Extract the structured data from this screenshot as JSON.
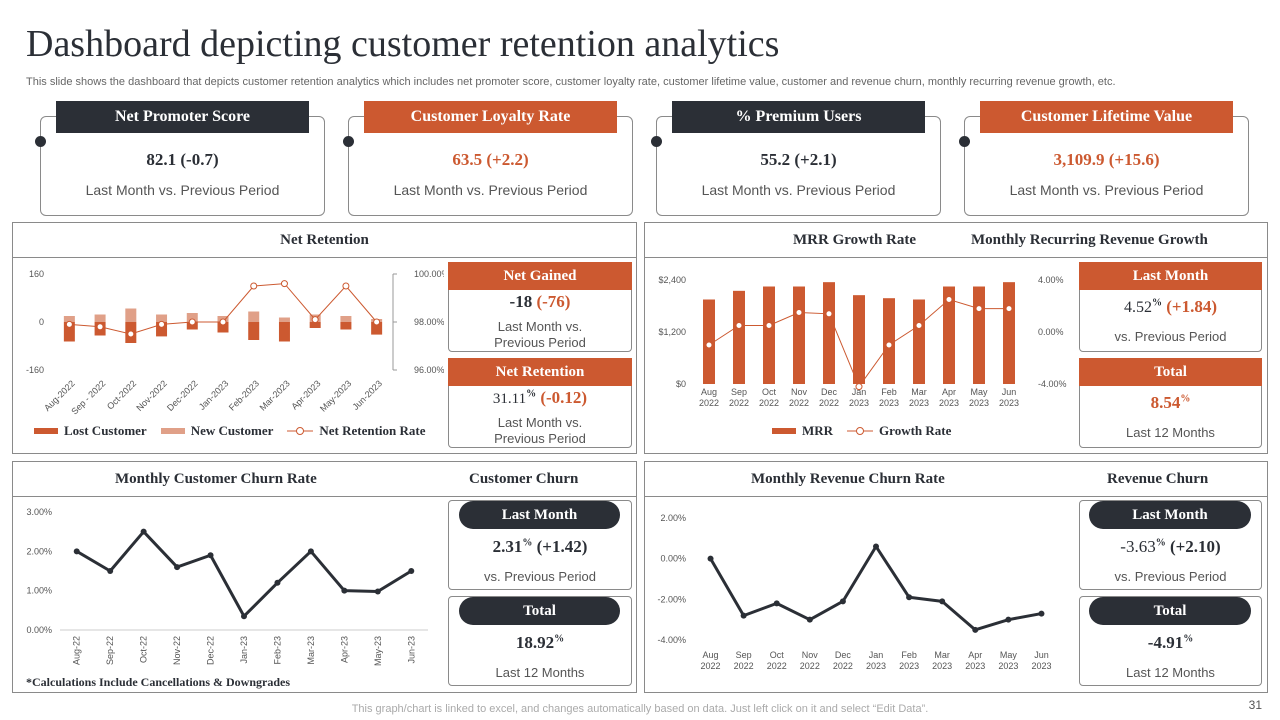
{
  "title": "Dashboard depicting customer retention analytics",
  "subtitle": "This slide shows the dashboard that depicts customer retention analytics which includes net promoter score, customer loyalty rate,  customer lifetime value, customer and revenue churn, monthly recurring revenue growth, etc.",
  "kpis": [
    {
      "label": "Net Promoter Score",
      "value": "82.1 (-0.7)",
      "sub": "Last Month vs. Previous Period"
    },
    {
      "label": "Customer Loyalty Rate",
      "value": "63.5 (+2.2)",
      "sub": "Last Month vs. Previous Period"
    },
    {
      "label": "% Premium Users",
      "value": "55.2 (+2.1)",
      "sub": "Last Month vs. Previous Period"
    },
    {
      "label": "Customer Lifetime Value",
      "value": "3,109.9 (+15.6)",
      "sub": "Last Month vs. Previous Period"
    }
  ],
  "colors": {
    "dark": "#2b2f36",
    "orange": "#cc5930",
    "light_orange": "#e0a088"
  },
  "net_retention_panel": {
    "title": "Net Retention",
    "net_gained": {
      "label": "Net Gained",
      "value": "-18",
      "change": "(-76)",
      "sub1": "Last Month vs.",
      "sub2": "Previous Period"
    },
    "net_retention": {
      "label": "Net Retention",
      "value": "31.11",
      "value_sup": "%",
      "change": "(-0.12)",
      "sub1": "Last Month vs.",
      "sub2": "Previous Period"
    },
    "legend": {
      "lost": "Lost Customer",
      "new": "New Customer",
      "rate": "Net Retention Rate"
    }
  },
  "mrr_panel": {
    "title": "MRR Growth Rate",
    "title2": "Monthly Recurring Revenue Growth",
    "last_month": {
      "label": "Last Month",
      "value": "4.52",
      "value_sup": "%",
      "change": "(+1.84)",
      "sub": "vs. Previous Period"
    },
    "total": {
      "label": "Total",
      "value": "8.54",
      "value_sup": "%",
      "sub": "Last 12 Months"
    },
    "legend": {
      "mrr": "MRR",
      "growth": "Growth Rate"
    }
  },
  "customer_churn_panel": {
    "title": "Monthly Customer Churn Rate",
    "title2": "Customer Churn",
    "last_month": {
      "label": "Last Month",
      "value": "2.31",
      "value_sup": "%",
      "change": "(+1.42)",
      "sub": "vs. Previous Period"
    },
    "total": {
      "label": "Total",
      "value": "18.92",
      "value_sup": "%",
      "sub": "Last 12 Months"
    }
  },
  "revenue_churn_panel": {
    "title": "Monthly Revenue Churn Rate",
    "title2": "Revenue Churn",
    "last_month": {
      "label": "Last Month",
      "value": "-3.63",
      "value_sup": "%",
      "change": "(+2.10)",
      "sub": "vs. Previous Period"
    },
    "total": {
      "label": "Total",
      "value": "-4.91",
      "value_sup": "%",
      "sub": "Last 12 Months"
    }
  },
  "footnote": "*Calculations Include Cancellations & Downgrades",
  "footer": "This graph/chart is linked to excel,  and changes automatically based on data. Just left click on it and select “Edit Data”.",
  "page_number": "31",
  "chart_data": [
    {
      "id": "net_retention",
      "type": "bar",
      "categories": [
        "Aug-2022",
        "Sep - 2022",
        "Oct-2022",
        "Nov-2022",
        "Dec-2022",
        "Jan-2023",
        "Feb-2023",
        "Mar-2023",
        "Apr-2023",
        "May-2023",
        "Jun-2023"
      ],
      "series": [
        {
          "name": "Lost Customer",
          "values": [
            -65,
            -45,
            -70,
            -48,
            -25,
            -35,
            -60,
            -65,
            -20,
            -25,
            -42
          ]
        },
        {
          "name": "New Customer",
          "values": [
            20,
            25,
            45,
            25,
            30,
            20,
            35,
            15,
            25,
            20,
            10
          ]
        },
        {
          "name": "Net Retention Rate",
          "axis": "right",
          "values": [
            97.9,
            97.8,
            97.5,
            97.9,
            98.0,
            98.0,
            99.5,
            99.6,
            98.1,
            99.5,
            98.0
          ]
        }
      ],
      "ylim": [
        -160,
        160
      ],
      "yticks": [
        160,
        0,
        -160
      ],
      "y2lim": [
        96,
        100
      ],
      "y2ticks": [
        "100.00%",
        "98.00%",
        "96.00%"
      ]
    },
    {
      "id": "mrr",
      "type": "bar",
      "categories": [
        "Aug\n2022",
        "Sep\n2022",
        "Oct\n2022",
        "Nov\n2022",
        "Dec\n2022",
        "Jan\n2023",
        "Feb\n2023",
        "Mar\n2023",
        "Apr\n2023",
        "May\n2023",
        "Jun\n2023"
      ],
      "series": [
        {
          "name": "MRR",
          "values": [
            1950,
            2150,
            2250,
            2250,
            2350,
            2050,
            1980,
            1950,
            2250,
            2250,
            2350
          ]
        },
        {
          "name": "Growth Rate",
          "axis": "right",
          "values": [
            -1.0,
            0.5,
            0.5,
            1.5,
            1.4,
            -4.2,
            -1.0,
            0.5,
            2.5,
            1.8,
            1.8
          ]
        }
      ],
      "ylim": [
        0,
        2400
      ],
      "yticks": [
        "$0",
        "$1,200",
        "$2,400"
      ],
      "y2lim": [
        -4,
        4
      ],
      "y2ticks": [
        "4.00%",
        "0.00%",
        "-4.00%"
      ]
    },
    {
      "id": "customer_churn",
      "type": "line",
      "categories": [
        "Aug-22",
        "Sep-22",
        "Oct-22",
        "Nov-22",
        "Dec-22",
        "Jan-23",
        "Feb-23",
        "Mar-23",
        "Apr-23",
        "May-23",
        "Jun-23"
      ],
      "values": [
        2.0,
        1.5,
        2.5,
        1.6,
        1.9,
        0.35,
        1.2,
        2.0,
        1.0,
        0.98,
        1.5
      ],
      "ylim": [
        0,
        3
      ],
      "yticks": [
        "3.00%",
        "2.00%",
        "1.00%",
        "0.00%"
      ]
    },
    {
      "id": "revenue_churn",
      "type": "line",
      "categories": [
        "Aug\n2022",
        "Sep\n2022",
        "Oct\n2022",
        "Nov\n2022",
        "Dec\n2022",
        "Jan\n2023",
        "Feb\n2023",
        "Mar\n2023",
        "Apr\n2023",
        "May\n2023",
        "Jun\n2023"
      ],
      "values": [
        0.0,
        -2.8,
        -2.2,
        -3.0,
        -2.1,
        0.6,
        -1.9,
        -2.1,
        -3.5,
        -3.0,
        -2.7
      ],
      "ylim": [
        -4,
        2
      ],
      "yticks": [
        "2.00%",
        "0.00%",
        "-2.00%",
        "-4.00%"
      ]
    }
  ]
}
